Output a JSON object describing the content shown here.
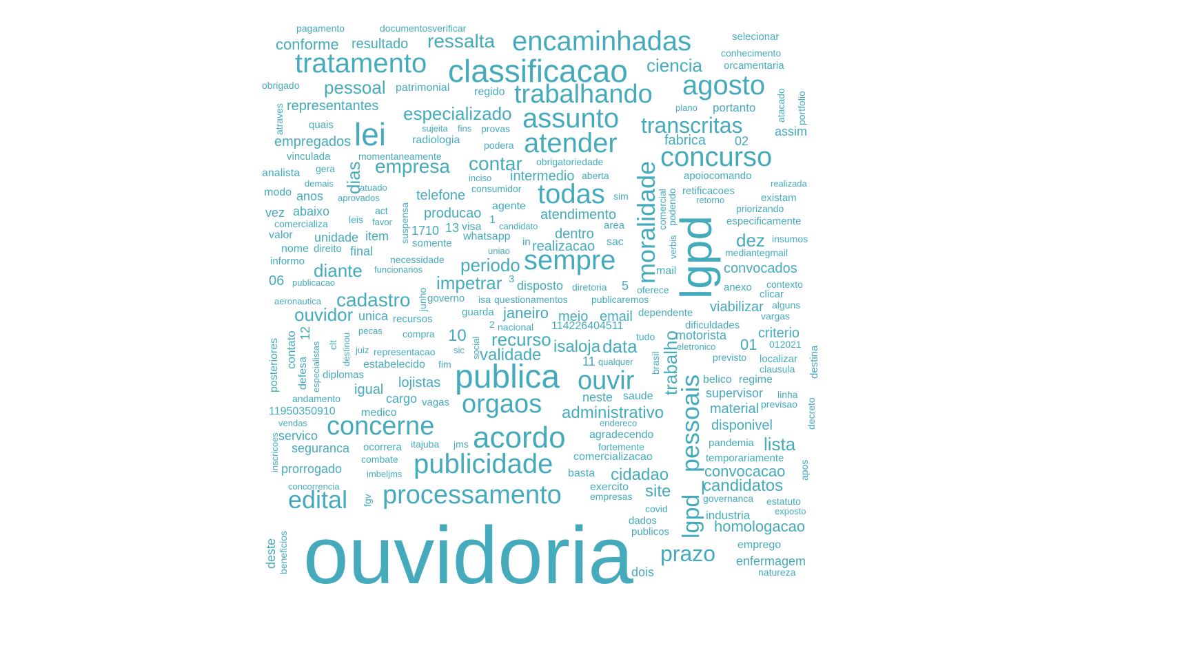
{
  "color": "#45abbc",
  "words": [
    "ouvidoria",
    "lgpd",
    "classificacao",
    "encaminhadas",
    "tratamento",
    "trabalhando",
    "publica",
    "acordo",
    "lei",
    "agosto",
    "assunto",
    "atender",
    "concurso",
    "todas",
    "sempre",
    "processamento",
    "publicidade",
    "concerne",
    "moralidade",
    "pessoais",
    "orgaos",
    "ouvir",
    "transcritas",
    "edital",
    "lgpd_",
    "empresa",
    "contar",
    "especializado",
    "prazo",
    "trabalho",
    "pessoal",
    "ressalta",
    "ciencia",
    "cadastro",
    "diante",
    "impetrar",
    "ouvidor",
    "periodo",
    "dez",
    "administrativo",
    "recurso",
    "validade",
    "data",
    "isaloja",
    "cidadao",
    "lista",
    "candidatos",
    "convocacao",
    "homologacao",
    "site",
    "conforme",
    "resultado",
    "representantes",
    "empregados",
    "transcritas",
    "dias",
    "fabrica",
    "intermedio",
    "telefone",
    "producao",
    "atendimento",
    "dentro",
    "realizacao",
    "janeiro",
    "meio",
    "email",
    "criterio",
    "motorista",
    "convocados",
    "viabilizar",
    "material",
    "disponivel",
    "supervisor",
    "lojistas",
    "igual",
    "cargo",
    "medico",
    "servico",
    "seguranca",
    "prorrogado",
    "neste",
    "saude",
    "comercializacao",
    "basta",
    "exercito",
    "empresas",
    "industria",
    "emprego",
    "enfermagem",
    "dois",
    "unidade",
    "item",
    "final",
    "abaixo",
    "vez",
    "anos",
    "analista",
    "modo",
    "valor",
    "nome"
  ],
  "groups": {
    "large": [
      "ouvidoria",
      "publica",
      "acordo",
      "classificacao",
      "encaminhadas",
      "tratamento",
      "trabalhando",
      "lgpd"
    ],
    "medium": [
      "agosto",
      "assunto",
      "atender",
      "concurso",
      "todas",
      "sempre",
      "processamento",
      "publicidade",
      "concerne",
      "orgaos",
      "ouvir",
      "lei"
    ],
    "small": [
      "pagamento",
      "documentosverificar",
      "selecionar",
      "conhecimento",
      "orcamentaria",
      "obrigado",
      "patrimonial",
      "regido",
      "plano",
      "portanto",
      "quais",
      "sujeita",
      "fins",
      "provas",
      "assim",
      "radiologia",
      "podera",
      "vinculada",
      "momentaneamente",
      "obrigatoriedade",
      "apoiocomando",
      "gera",
      "aberta",
      "inciso",
      "consumidor",
      "retificacoes",
      "existam",
      "realizada",
      "demais",
      "atuado",
      "aprovados",
      "retorno",
      "priorizando",
      "especificamente",
      "comercializa",
      "leis",
      "favor",
      "act",
      "agente",
      "candidato",
      "area",
      "informo",
      "direito",
      "whatsapp",
      "uniao",
      "insumos",
      "mediantegmail",
      "necessidade",
      "funcionarios",
      "publicacao",
      "disposto",
      "diretoria",
      "oferece",
      "anexo",
      "contexto",
      "aeronautica",
      "governo",
      "isa",
      "questionamentos",
      "publicaremos",
      "dependente",
      "alguns",
      "vargas",
      "clicar",
      "recursos",
      "guarda",
      "nacional",
      "dificuldades",
      "pecas",
      "compra",
      "tudo",
      "juiz",
      "representacao",
      "eletronico",
      "previsto",
      "localizar",
      "clausula",
      "estabelecido",
      "fim",
      "qualquer",
      "diplomas",
      "belico",
      "regime",
      "andamento",
      "vagas",
      "linha",
      "previsao",
      "endereco",
      "itajuba",
      "jms",
      "agradecendo",
      "pandemia",
      "combate",
      "fortemente",
      "temporariamente",
      "imbeljms",
      "concorrencia",
      "governanca",
      "estatuto",
      "exposto",
      "covid",
      "dados",
      "publicos",
      "natureza",
      "somente",
      "unica",
      "1710",
      "13",
      "visa",
      "1",
      "sac",
      "sim",
      "02",
      "10",
      "01",
      "06",
      "5",
      "3",
      "2",
      "114226404511",
      "11950350910",
      "012021",
      "11",
      "12"
    ]
  }
}
